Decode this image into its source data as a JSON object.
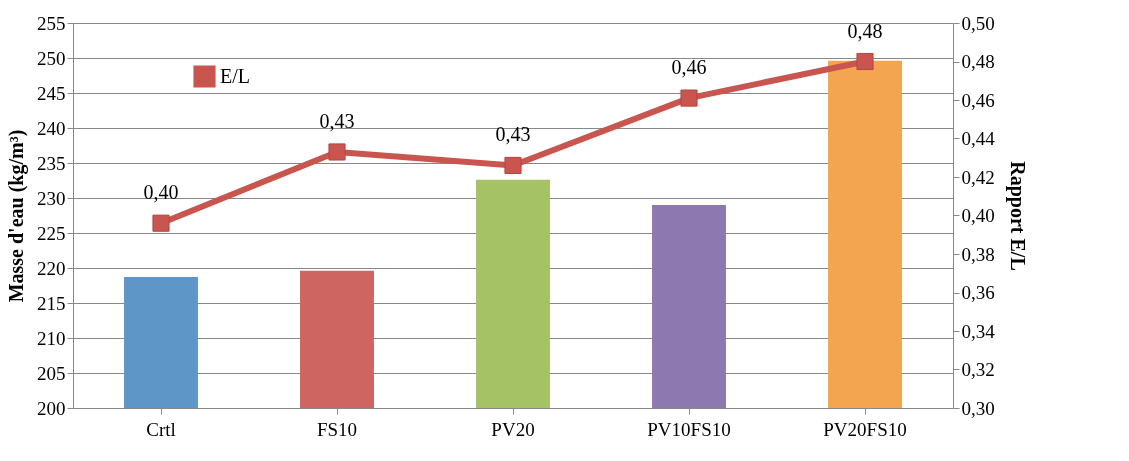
{
  "chart_data": {
    "type": "bar",
    "categories": [
      "Crtl",
      "FS10",
      "PV20",
      "PV10FS10",
      "PV20FS10"
    ],
    "ylabel": "Masse d'eau (kg/m³)",
    "y2label": "Rapport E/L",
    "ylim": [
      200,
      255
    ],
    "yticks": [
      200,
      205,
      210,
      215,
      220,
      225,
      230,
      235,
      240,
      245,
      250,
      255
    ],
    "y2lim": [
      0.3,
      0.5
    ],
    "y2ticks": [
      {
        "value": 0.3,
        "label": "0,30"
      },
      {
        "value": 0.32,
        "label": "0,32"
      },
      {
        "value": 0.34,
        "label": "0,34"
      },
      {
        "value": 0.36,
        "label": "0,36"
      },
      {
        "value": 0.38,
        "label": "0,38"
      },
      {
        "value": 0.4,
        "label": "0,40"
      },
      {
        "value": 0.42,
        "label": "0,42"
      },
      {
        "value": 0.44,
        "label": "0,44"
      },
      {
        "value": 0.46,
        "label": "0,46"
      },
      {
        "value": 0.48,
        "label": "0,48"
      },
      {
        "value": 0.5,
        "label": "0,50"
      }
    ],
    "grid": "y",
    "legend": "top left",
    "marker": "square",
    "line_style": "solid",
    "series": [
      {
        "colors": [
          "#5f96c8",
          "#cf6560",
          "#a5c264",
          "#8e78b0",
          "#f4a550"
        ],
        "values": [
          218.7,
          219.6,
          232.6,
          229.0,
          249.6
        ]
      },
      {
        "type": "line",
        "name": "E/L",
        "axis": "y2",
        "color": "#c9554f",
        "values": [
          0.396,
          0.433,
          0.426,
          0.461,
          0.48
        ],
        "value_labels": [
          "0,40",
          "0,43",
          "0,43",
          "0,46",
          "0,48"
        ]
      }
    ]
  }
}
